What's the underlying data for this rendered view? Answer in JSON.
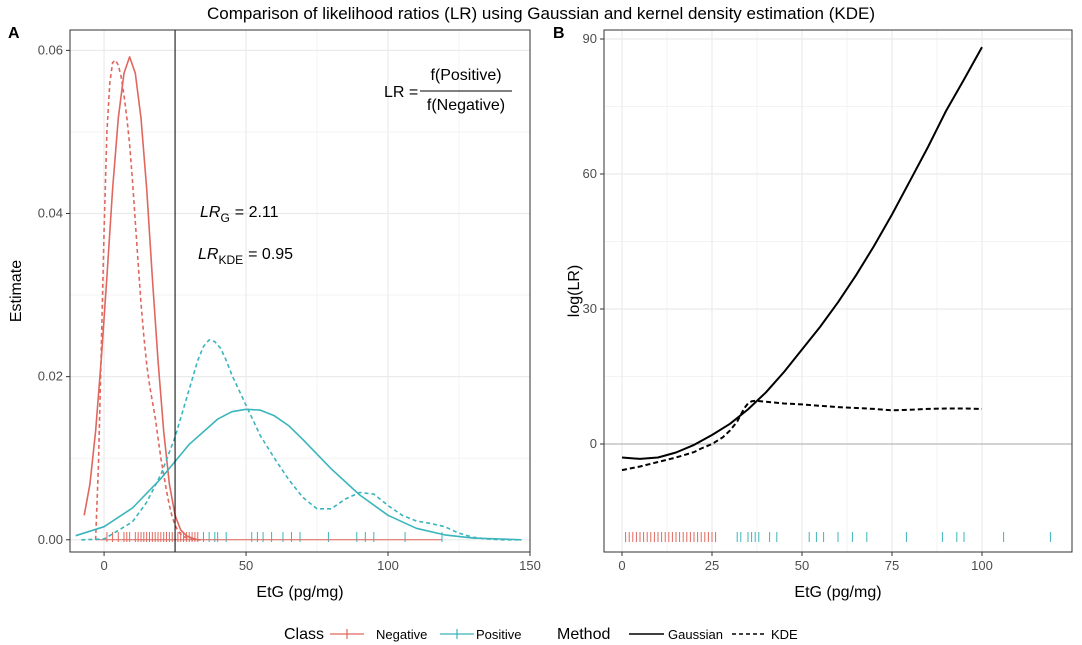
{
  "figure": {
    "title": "Comparison of likelihood ratios (LR) using Gaussian and kernel density estimation (KDE)"
  },
  "colors": {
    "negative": "#E0675E",
    "positive": "#3AB5BC",
    "grid": "#ebebeb",
    "axis_text": "#4d4d4d",
    "line": "#000000"
  },
  "legend": {
    "class_title": "Class",
    "negative_label": "Negative",
    "positive_label": "Positive",
    "method_title": "Method",
    "gaussian_label": "Gaussian",
    "kde_label": "KDE"
  },
  "chart_data": [
    {
      "type": "line",
      "panel": "A",
      "xlabel": "EtG (pg/mg)",
      "ylabel": "Estimate",
      "xlim": [
        -12,
        150
      ],
      "ylim": [
        -0.0015,
        0.0625
      ],
      "xticks": [
        0,
        50,
        100,
        150
      ],
      "yticks": [
        0.0,
        0.02,
        0.04,
        0.06
      ],
      "ytick_labels": [
        "0.00",
        "0.02",
        "0.04",
        "0.06"
      ],
      "grid": true,
      "vline_x": 25,
      "annotations": {
        "formula_lhs": "LR =",
        "formula_num": "f(Positive)",
        "formula_den": "f(Negative)",
        "lr_g_base": "LR",
        "lr_g_sub": "G",
        "lr_g_value": "= 2.11",
        "lr_kde_base": "LR",
        "lr_kde_sub": "KDE",
        "lr_kde_value": "= 0.95"
      },
      "series": [
        {
          "name": "Negative Gaussian",
          "class": "negative",
          "method": "Gaussian",
          "x": [
            -7,
            -5,
            -3,
            -1,
            1,
            3,
            5,
            7,
            9,
            11,
            13,
            15,
            17,
            19,
            21,
            23,
            25,
            27,
            29,
            31,
            33
          ],
          "y": [
            0.003,
            0.0068,
            0.0133,
            0.022,
            0.0322,
            0.043,
            0.0517,
            0.0572,
            0.0592,
            0.0572,
            0.0517,
            0.043,
            0.0322,
            0.022,
            0.0133,
            0.0068,
            0.003,
            0.0012,
            0.0005,
            0.0002,
            0.0
          ]
        },
        {
          "name": "Negative KDE",
          "class": "negative",
          "method": "KDE",
          "x": [
            -3,
            -2,
            -1,
            0,
            1,
            2,
            3,
            4,
            5,
            6,
            7,
            8,
            9,
            10,
            11,
            12,
            13,
            14,
            15,
            16,
            17,
            18,
            19,
            20,
            21,
            22,
            23,
            24,
            25,
            26,
            27,
            28,
            30,
            32,
            34
          ],
          "y": [
            0.0,
            0.009,
            0.023,
            0.038,
            0.05,
            0.056,
            0.0585,
            0.0588,
            0.0582,
            0.0568,
            0.0545,
            0.0518,
            0.0485,
            0.044,
            0.039,
            0.034,
            0.029,
            0.025,
            0.0215,
            0.019,
            0.017,
            0.015,
            0.0125,
            0.01,
            0.008,
            0.006,
            0.0042,
            0.0028,
            0.0018,
            0.0011,
            0.0007,
            0.0004,
            0.0001,
            0.0,
            0.0
          ]
        },
        {
          "name": "Positive Gaussian",
          "class": "positive",
          "method": "Gaussian",
          "x": [
            -10,
            0,
            10,
            20,
            30,
            40,
            45,
            50,
            55,
            60,
            65,
            70,
            80,
            90,
            100,
            110,
            120,
            130,
            140,
            147
          ],
          "y": [
            0.0005,
            0.0016,
            0.0039,
            0.0075,
            0.0117,
            0.0148,
            0.0157,
            0.016,
            0.0159,
            0.0152,
            0.014,
            0.0123,
            0.0087,
            0.0055,
            0.003,
            0.0014,
            0.0006,
            0.0002,
            0.0001,
            0.0
          ]
        },
        {
          "name": "Positive KDE",
          "class": "positive",
          "method": "KDE",
          "x": [
            -8,
            0,
            10,
            15,
            20,
            25,
            30,
            33,
            35,
            37,
            39,
            41,
            43,
            45,
            50,
            55,
            60,
            65,
            70,
            75,
            80,
            85,
            90,
            95,
            100,
            105,
            110,
            115,
            120,
            125,
            130,
            135,
            140,
            147
          ],
          "y": [
            0.0,
            0.0001,
            0.0022,
            0.0046,
            0.008,
            0.0126,
            0.0185,
            0.022,
            0.0237,
            0.0245,
            0.0243,
            0.0235,
            0.022,
            0.0202,
            0.0165,
            0.0128,
            0.01,
            0.0074,
            0.0052,
            0.0038,
            0.0038,
            0.005,
            0.0058,
            0.0056,
            0.0042,
            0.003,
            0.0023,
            0.002,
            0.0016,
            0.0008,
            0.0003,
            0.0001,
            0.0,
            0.0
          ]
        }
      ],
      "rug": {
        "negative": [
          1,
          3,
          5,
          7,
          8,
          9,
          11,
          12,
          13,
          14,
          15,
          16,
          17,
          18,
          19,
          20,
          21,
          22,
          23,
          24,
          25,
          26,
          27,
          28,
          29,
          30,
          31,
          32,
          33
        ],
        "positive": [
          35,
          37,
          39,
          40,
          43,
          52,
          54,
          56,
          59,
          63,
          66,
          69,
          79,
          89,
          92,
          95,
          106,
          119
        ]
      }
    },
    {
      "type": "line",
      "panel": "B",
      "xlabel": "EtG (pg/mg)",
      "ylabel": "log(LR)",
      "xlim": [
        -5,
        125
      ],
      "ylim": [
        -24,
        92
      ],
      "xticks": [
        0,
        25,
        50,
        75,
        100
      ],
      "yticks": [
        0,
        30,
        60,
        90
      ],
      "grid": true,
      "hline_y": 0,
      "series": [
        {
          "name": "Gaussian",
          "method": "Gaussian",
          "x": [
            0,
            5,
            10,
            15,
            20,
            25,
            30,
            35,
            40,
            45,
            50,
            55,
            60,
            65,
            70,
            75,
            80,
            85,
            90,
            95,
            100
          ],
          "y": [
            -3.0,
            -3.3,
            -3.0,
            -1.9,
            -0.2,
            2.0,
            4.5,
            7.7,
            11.5,
            16.0,
            21.0,
            26.0,
            31.5,
            37.5,
            44.0,
            51.0,
            58.5,
            66.0,
            74.0,
            81.0,
            88.2
          ]
        },
        {
          "name": "KDE",
          "method": "KDE",
          "x": [
            0,
            5,
            10,
            15,
            20,
            22,
            25,
            28,
            30,
            32,
            34,
            35,
            36,
            37,
            40,
            45,
            50,
            55,
            60,
            65,
            70,
            75,
            80,
            85,
            90,
            95,
            100
          ],
          "y": [
            -5.8,
            -5.0,
            -4.0,
            -3.0,
            -1.8,
            -1.0,
            0.0,
            1.5,
            3.0,
            5.0,
            8.0,
            9.0,
            9.5,
            9.6,
            9.4,
            9.0,
            8.8,
            8.5,
            8.2,
            8.0,
            7.8,
            7.5,
            7.6,
            7.8,
            7.9,
            7.9,
            7.8
          ]
        }
      ],
      "rug": {
        "negative": [
          1,
          2,
          3,
          4,
          5,
          6,
          7,
          8,
          9,
          10,
          11,
          12,
          13,
          14,
          15,
          16,
          17,
          18,
          19,
          20,
          21,
          22,
          23,
          24,
          25,
          26
        ],
        "positive": [
          32,
          33,
          35,
          36,
          37,
          38,
          41,
          43,
          52,
          54,
          56,
          60,
          64,
          68,
          79,
          89,
          93,
          95,
          106,
          119
        ]
      }
    }
  ]
}
